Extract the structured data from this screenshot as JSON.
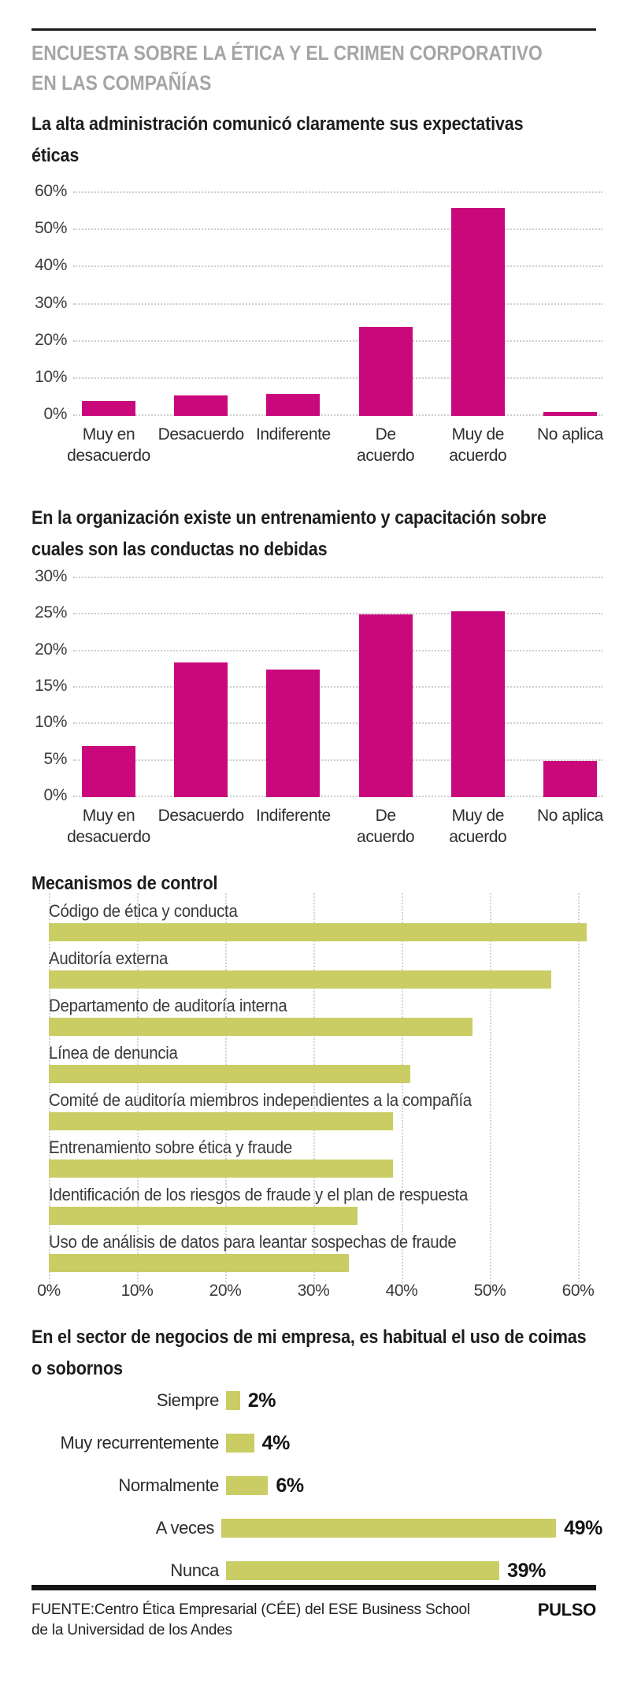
{
  "header": {
    "title": "ENCUESTA SOBRE LA ÉTICA Y EL CRIMEN CORPORATIVO EN LAS COMPAÑÍAS",
    "title_lines": [
      "ENCUESTA SOBRE LA ÉTICA Y EL CRIMEN CORPORATIVO",
      "EN LAS COMPAÑÍAS"
    ]
  },
  "footer": {
    "source": "FUENTE:Centro Ética Empresarial (CÉE) del ESE Business School de la Universidad de los Andes",
    "source_lines": [
      "FUENTE:Centro Ética Empresarial (CÉE) del ESE Business School",
      "de la Universidad de los Andes"
    ],
    "brand": "PULSO"
  },
  "colors": {
    "magenta": "#c9087b",
    "green": "#c9cd64",
    "header_gray": "#a5a5a5",
    "text_dark": "#1d1d1d",
    "gridline": "#cdcdcd"
  },
  "chart_data": [
    {
      "id": "expectativas-eticas",
      "type": "bar",
      "title": "La alta administración comunicó claramente sus expectativas éticas",
      "title_lines": [
        "La alta administración comunicó claramente sus expectativas",
        "éticas"
      ],
      "categories": [
        "Muy en desacuerdo",
        "Desacuerdo",
        "Indiferente",
        "De acuerdo",
        "Muy de acuerdo",
        "No aplica"
      ],
      "categories_lines": [
        [
          "Muy en",
          "desacuerdo"
        ],
        [
          "Desacuerdo"
        ],
        [
          "Indiferente"
        ],
        [
          "De",
          "acuerdo"
        ],
        [
          "Muy de",
          "acuerdo"
        ],
        [
          "No aplica"
        ]
      ],
      "values": [
        4,
        5.5,
        6,
        24,
        56,
        1
      ],
      "unit": "%",
      "ylim": [
        0,
        60
      ],
      "ytick_step": 10,
      "grid": true,
      "bar_color": "#c9087b"
    },
    {
      "id": "entrenamiento-capacitacion",
      "type": "bar",
      "title": "En la organización existe un entrenamiento y capacitación sobre cuales son las conductas no debidas",
      "title_lines": [
        "En la organización existe un entrenamiento y capacitación sobre",
        "cuales son las conductas no debidas"
      ],
      "categories": [
        "Muy en desacuerdo",
        "Desacuerdo",
        "Indiferente",
        "De acuerdo",
        "Muy de acuerdo",
        "No aplica"
      ],
      "categories_lines": [
        [
          "Muy en",
          "desacuerdo"
        ],
        [
          "Desacuerdo"
        ],
        [
          "Indiferente"
        ],
        [
          "De",
          "acuerdo"
        ],
        [
          "Muy de",
          "acuerdo"
        ],
        [
          "No aplica"
        ]
      ],
      "values": [
        7,
        18.5,
        17.5,
        25,
        25.5,
        5
      ],
      "unit": "%",
      "ylim": [
        0,
        30
      ],
      "ytick_step": 5,
      "grid": true,
      "bar_color": "#c9087b"
    },
    {
      "id": "mecanismos-de-control",
      "type": "bar-horizontal",
      "title": "Mecanismos de control",
      "title_lines": [
        "Mecanismos de control"
      ],
      "categories": [
        "Código de ética y conducta",
        "Auditoría externa",
        "Departamento de auditoría interna",
        "Línea de denuncia",
        "Comité de auditoría miembros independientes a la compañía",
        "Entrenamiento sobre ética y fraude",
        "Identificación de los riesgos de fraude y el plan de respuesta",
        "Uso de análisis de datos para leantar sospechas de fraude"
      ],
      "values": [
        61,
        57,
        48,
        41,
        39,
        39,
        35,
        34
      ],
      "unit": "%",
      "xlim": [
        0,
        60
      ],
      "xtick_step": 10,
      "grid": true,
      "bar_color": "#c9cd64"
    },
    {
      "id": "uso-de-coimas-sobornos",
      "type": "bar-horizontal",
      "title": "En el sector de negocios de mi empresa, es habitual el uso de coimas o sobornos",
      "title_lines": [
        "En el sector de negocios de mi empresa, es habitual el uso de coimas",
        "o sobornos"
      ],
      "categories": [
        "Siempre",
        "Muy recurrentemente",
        "Normalmente",
        "A veces",
        "Nunca"
      ],
      "values": [
        2,
        4,
        6,
        49,
        39
      ],
      "value_labels": [
        "2%",
        "4%",
        "6%",
        "49%",
        "39%"
      ],
      "unit": "%",
      "grid": false,
      "bar_color": "#c9cd64"
    }
  ]
}
